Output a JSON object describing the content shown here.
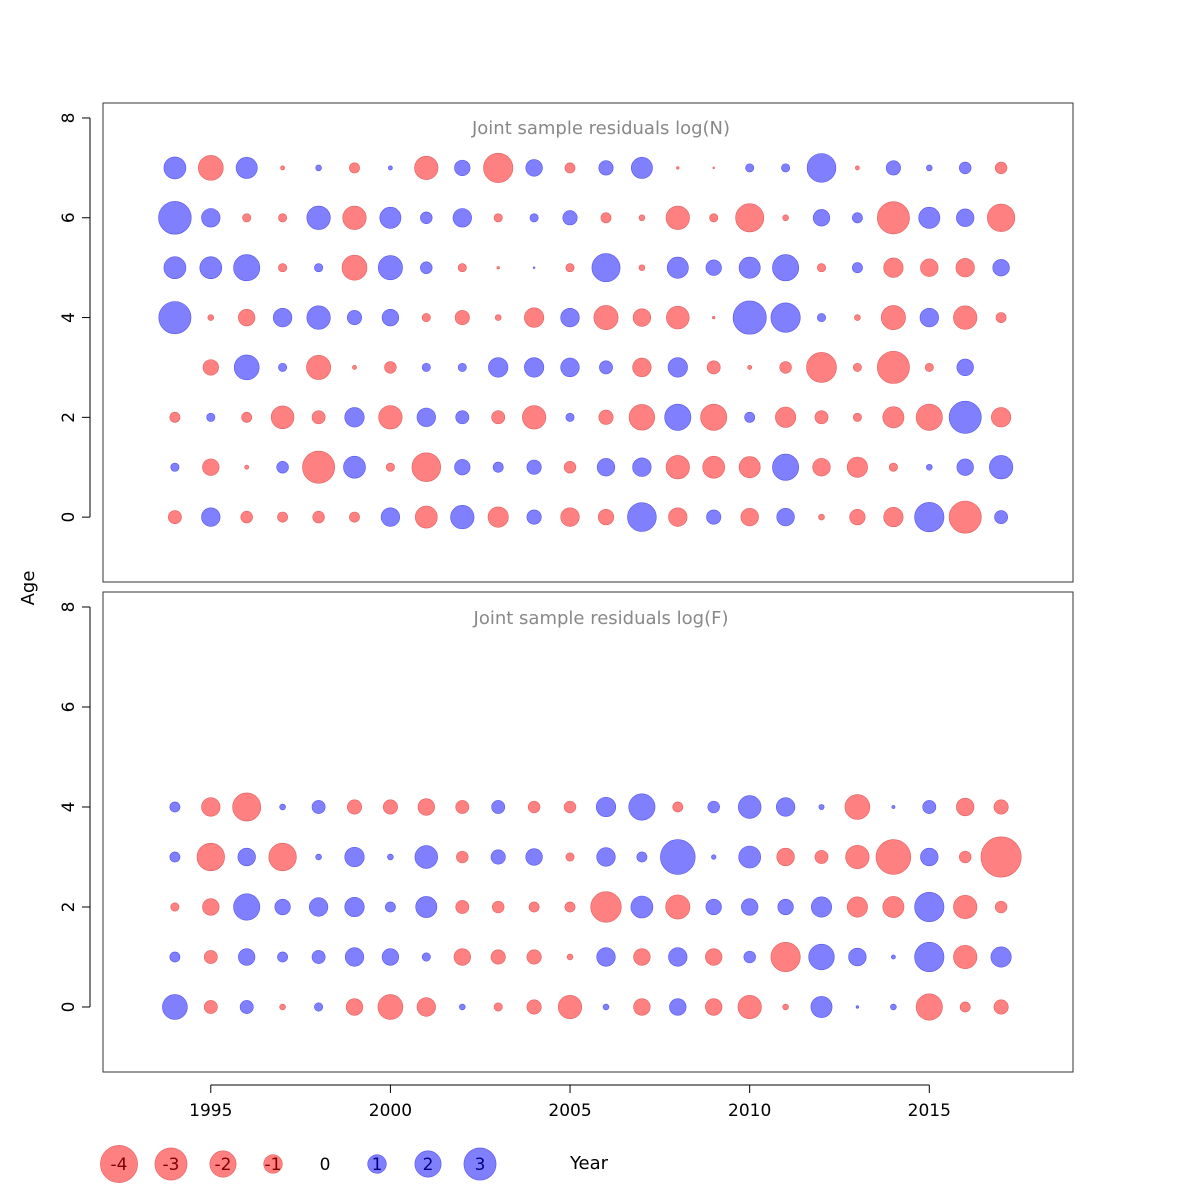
{
  "ylabel": "Age",
  "xlabel": "Year",
  "colors": {
    "positive": "#8080ff",
    "negative": "#ff8080",
    "positive_edge": "#5555ee",
    "negative_edge": "#e06060"
  },
  "legend": {
    "values": [
      -4,
      -3,
      -2,
      -1,
      0,
      1,
      2,
      3
    ],
    "labels": [
      "-4",
      "-3",
      "-2",
      "-1",
      "0",
      "1",
      "2",
      "3"
    ]
  },
  "chart_data": [
    {
      "type": "scatter",
      "subtype": "bubble",
      "title": "Joint sample residuals log(N)",
      "xlabel": "Year",
      "ylabel": "Age",
      "xlim": [
        1992,
        2019
      ],
      "ylim": [
        -1.3,
        8.3
      ],
      "xticks": [
        1995,
        2000,
        2005,
        2010,
        2015
      ],
      "xtick_labels": [
        "1995",
        "2000",
        "2005",
        "2010",
        "2015"
      ],
      "yticks": [
        0,
        2,
        4,
        6,
        8
      ],
      "ytick_labels": [
        "0",
        "2",
        "4",
        "6",
        "8"
      ],
      "years": [
        1994,
        1995,
        1996,
        1997,
        1998,
        1999,
        2000,
        2001,
        2002,
        2003,
        2004,
        2005,
        2006,
        2007,
        2008,
        2009,
        2010,
        2011,
        2012,
        2013,
        2014,
        2015,
        2016,
        2017
      ],
      "ages": [
        0,
        1,
        2,
        3,
        4,
        5,
        6,
        7
      ],
      "residuals": [
        [
          -0.5,
          1.0,
          -0.4,
          -0.3,
          -0.4,
          -0.3,
          1.0,
          -1.4,
          1.6,
          -1.2,
          0.6,
          -1.0,
          -0.7,
          2.4,
          -1.0,
          0.6,
          -0.9,
          0.9,
          -0.1,
          -0.7,
          -1.1,
          2.5,
          -3.0,
          0.5
        ],
        [
          0.2,
          -0.8,
          -0.05,
          0.4,
          -3.0,
          1.4,
          -0.2,
          -2.4,
          0.7,
          0.3,
          0.6,
          -0.4,
          0.9,
          1.0,
          -1.6,
          -1.4,
          -1.3,
          2.0,
          -0.9,
          -1.2,
          -0.2,
          0.1,
          0.8,
          1.6
        ],
        [
          -0.3,
          0.2,
          -0.3,
          -1.5,
          -0.5,
          1.1,
          -1.6,
          1.0,
          0.5,
          -0.5,
          -1.6,
          0.2,
          -0.6,
          -1.9,
          2.0,
          -2.0,
          0.3,
          -1.2,
          -0.5,
          -0.2,
          -1.3,
          -2.0,
          3.0,
          -1.1
        ],
        [
          0.0,
          -0.7,
          1.8,
          0.2,
          -1.7,
          -0.05,
          -0.4,
          0.2,
          0.2,
          1.1,
          1.1,
          1.0,
          0.5,
          -1.0,
          1.1,
          -0.5,
          -0.05,
          -0.4,
          -2.6,
          -0.2,
          -3.0,
          -0.2,
          0.8,
          0.0
        ],
        [
          3.0,
          -0.1,
          -0.8,
          1.0,
          1.6,
          0.6,
          0.8,
          -0.2,
          -0.6,
          -0.1,
          -1.1,
          1.0,
          -1.7,
          -0.9,
          -1.5,
          -0.02,
          3.2,
          2.5,
          0.2,
          -0.1,
          -1.7,
          1.0,
          -1.6,
          -0.3
        ],
        [
          1.4,
          1.4,
          2.0,
          -0.2,
          0.2,
          -1.8,
          1.7,
          0.4,
          -0.2,
          -0.02,
          0.01,
          -0.2,
          2.3,
          -0.1,
          1.3,
          0.7,
          1.3,
          2.0,
          -0.2,
          0.3,
          -1.1,
          -0.9,
          -1.0,
          0.8
        ],
        [
          3.1,
          1.0,
          -0.2,
          -0.2,
          1.6,
          -1.6,
          1.3,
          0.4,
          1.0,
          -0.2,
          0.2,
          0.6,
          -0.3,
          -0.1,
          -1.6,
          -0.2,
          -2.3,
          -0.1,
          0.8,
          0.3,
          -3.0,
          1.3,
          0.9,
          -2.2
        ],
        [
          1.4,
          -1.8,
          1.3,
          -0.05,
          0.1,
          -0.3,
          0.05,
          -1.6,
          0.7,
          -2.5,
          0.8,
          -0.3,
          0.6,
          1.3,
          -0.02,
          -0.01,
          0.2,
          0.2,
          2.4,
          -0.05,
          0.6,
          0.1,
          0.4,
          -0.4
        ]
      ]
    },
    {
      "type": "scatter",
      "subtype": "bubble",
      "title": "Joint sample residuals log(F)",
      "xlabel": "Year",
      "ylabel": "Age",
      "xlim": [
        1992,
        2019
      ],
      "ylim": [
        -1.3,
        8.3
      ],
      "xticks": [
        1995,
        2000,
        2005,
        2010,
        2015
      ],
      "xtick_labels": [
        "1995",
        "2000",
        "2005",
        "2010",
        "2015"
      ],
      "yticks": [
        0,
        2,
        4,
        6,
        8
      ],
      "ytick_labels": [
        "0",
        "2",
        "4",
        "6",
        "8"
      ],
      "years": [
        1994,
        1995,
        1996,
        1997,
        1998,
        1999,
        2000,
        2001,
        2002,
        2003,
        2004,
        2005,
        2006,
        2007,
        2008,
        2009,
        2010,
        2011,
        2012,
        2013,
        2014,
        2015,
        2016,
        2017
      ],
      "ages": [
        0,
        1,
        2,
        3,
        4
      ],
      "residuals": [
        [
          1.8,
          -0.5,
          0.5,
          -0.1,
          0.2,
          -0.8,
          -1.8,
          -1.0,
          0.1,
          -0.2,
          -0.6,
          -1.6,
          0.1,
          -0.8,
          0.8,
          -0.8,
          -1.6,
          -0.1,
          1.3,
          0.02,
          0.1,
          -2.0,
          -0.3,
          -0.6
        ],
        [
          0.3,
          -0.5,
          0.8,
          0.3,
          0.5,
          1.0,
          0.8,
          0.2,
          -0.8,
          -0.6,
          -0.6,
          -0.1,
          1.0,
          -0.8,
          1.0,
          -0.8,
          0.4,
          -2.5,
          1.9,
          0.9,
          0.05,
          2.5,
          -1.6,
          1.2
        ],
        [
          -0.2,
          -0.8,
          2.0,
          0.7,
          1.0,
          1.1,
          0.3,
          1.3,
          -0.5,
          -0.4,
          -0.3,
          -0.3,
          -2.7,
          1.4,
          -1.7,
          0.7,
          0.8,
          0.7,
          1.2,
          -1.2,
          -1.3,
          2.5,
          -1.6,
          -0.4
        ],
        [
          0.3,
          -2.2,
          0.9,
          -2.2,
          0.1,
          1.1,
          0.1,
          1.5,
          -0.4,
          0.6,
          0.8,
          -0.2,
          1.0,
          0.3,
          3.5,
          0.06,
          1.4,
          -0.9,
          -0.5,
          -1.6,
          -3.5,
          0.9,
          -0.4,
          -4.7
        ],
        [
          0.3,
          -1.0,
          -2.3,
          0.1,
          0.5,
          -0.6,
          -0.6,
          -0.8,
          -0.5,
          0.5,
          -0.4,
          -0.4,
          1.1,
          2.0,
          -0.3,
          0.4,
          1.5,
          1.0,
          0.08,
          -1.8,
          0.03,
          0.5,
          -0.9,
          -0.6
        ]
      ]
    }
  ]
}
